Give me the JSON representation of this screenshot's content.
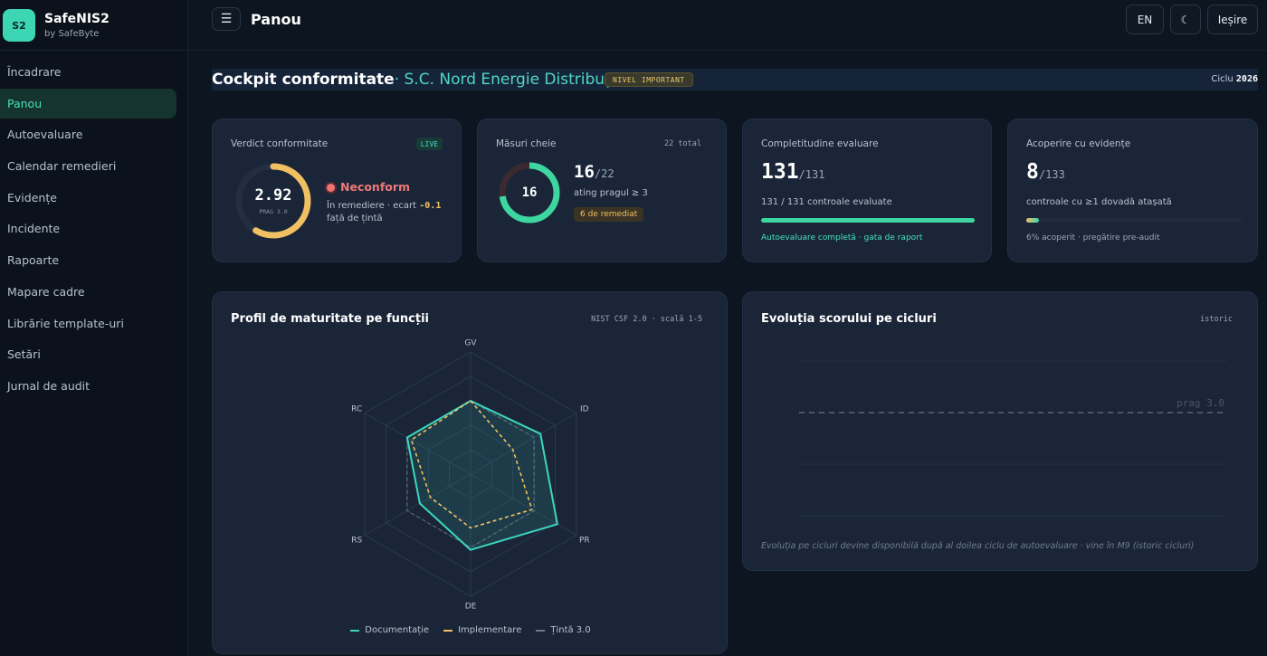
{
  "brand": {
    "logo": "S2",
    "name": "SafeNIS2",
    "sub": "by SafeByte"
  },
  "sidebar": {
    "items": [
      {
        "label": "Încadrare",
        "active": false
      },
      {
        "label": "Panou",
        "active": true
      },
      {
        "label": "Autoevaluare",
        "active": false
      },
      {
        "label": "Calendar remedieri",
        "active": false
      },
      {
        "label": "Evidențe",
        "active": false
      },
      {
        "label": "Incidente",
        "active": false
      },
      {
        "label": "Rapoarte",
        "active": false
      },
      {
        "label": "Mapare cadre",
        "active": false
      },
      {
        "label": "Librărie template-uri",
        "active": false
      },
      {
        "label": "Setări",
        "active": false
      },
      {
        "label": "Jurnal de audit",
        "active": false
      }
    ]
  },
  "topbar": {
    "menu_icon": "☰",
    "title": "Panou",
    "lang": "EN",
    "theme_icon": "☾",
    "logout": "Ieșire"
  },
  "heading": {
    "title": "Cockpit conformitate",
    "org": "· S.C. Nord Energie Distribuție",
    "level": "NIVEL IMPORTANT",
    "cycle_label": "Ciclu",
    "cycle_year": "2026"
  },
  "verdict": {
    "label": "Verdict conformitate",
    "live": "LIVE",
    "score": "2.92",
    "score_value": 2.92,
    "score_max": 5,
    "threshold": "PRAG 3.0",
    "status": "Neconform",
    "status_sub_prefix": "În remediere · ecart",
    "gap": "-0.1",
    "status_sub2": "față de țintă"
  },
  "measures": {
    "label": "Măsuri cheie",
    "total": "22 total",
    "ring_value": "16",
    "achieved": 16,
    "total_count": 22,
    "num": "16",
    "den": "/22",
    "sub": "ating pragul ≥ 3",
    "badge": "6 de remediat"
  },
  "completeness": {
    "label": "Completitudine evaluare",
    "num": "131",
    "den": "/131",
    "sub": "131 / 131 controale evaluate",
    "progress": 1.0,
    "caption": "Autoevaluare completă · gata de raport"
  },
  "evidence": {
    "label": "Acoperire cu evidențe",
    "num": "8",
    "den": "/133",
    "sub": "controale cu ≥1 dovadă atașată",
    "progress": 0.06,
    "caption": "6% acoperit · pregătire pre-audit"
  },
  "maturity": {
    "title": "Profil de maturitate pe funcții",
    "tag": "NIST CSF 2.0 · scală 1-5"
  },
  "history": {
    "title": "Evoluția scorului pe cicluri",
    "tag": "istoric",
    "threshold_label": "prag 3.0",
    "note": "Evoluția pe cicluri devine disponibilă după al doilea ciclu de autoevaluare · vine în M9 (istoric cicluri)"
  },
  "colors": {
    "accent": "#3dd6b4",
    "amber": "#f0c062",
    "danger": "#f07272",
    "target": "#8a94a3"
  },
  "chart_data": [
    {
      "type": "radar",
      "title": "Profil de maturitate pe funcții",
      "axes": [
        "GV",
        "ID",
        "PR",
        "DE",
        "RS",
        "RC"
      ],
      "rmax": 5,
      "series": [
        {
          "name": "Documentație",
          "values": [
            3.0,
            3.3,
            4.1,
            3.1,
            2.4,
            3.0
          ]
        },
        {
          "name": "Implementare",
          "values": [
            3.0,
            2.0,
            2.9,
            2.2,
            1.9,
            2.8
          ]
        },
        {
          "name": "Țintă 3.0",
          "values": [
            3.0,
            3.0,
            3.0,
            3.0,
            3.0,
            3.0
          ]
        }
      ]
    },
    {
      "type": "line",
      "title": "Evoluția scorului pe cicluri",
      "series": [],
      "threshold": {
        "label": "prag 3.0",
        "value": 3.0
      }
    }
  ]
}
